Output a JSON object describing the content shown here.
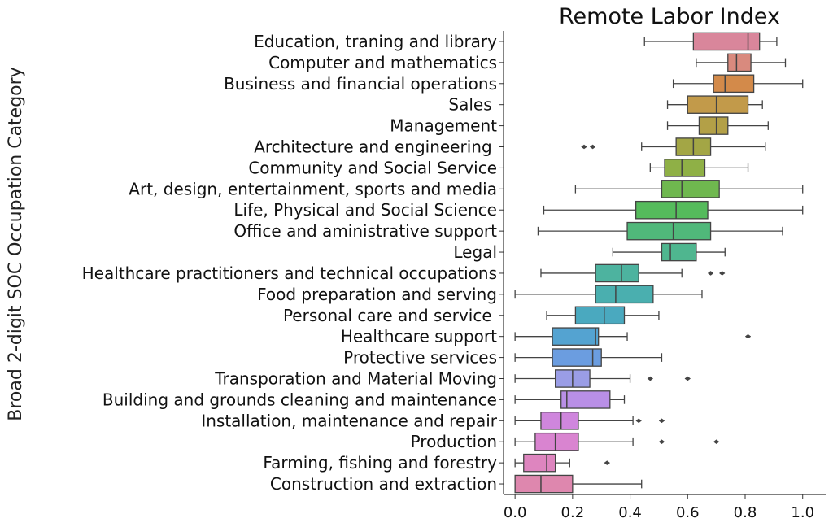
{
  "chart_data": {
    "type": "box",
    "orientation": "horizontal",
    "title": "Remote Labor Index",
    "xlabel": "",
    "ylabel": "Broad 2-digit SOC Occupation Category",
    "xlim": [
      -0.04,
      1.08
    ],
    "xticks": [
      "0.0",
      "0.2",
      "0.4",
      "0.6",
      "0.8",
      "1.0"
    ],
    "xtick_values": [
      0.0,
      0.2,
      0.4,
      0.6,
      0.8,
      1.0
    ],
    "grid": false,
    "categories": [
      {
        "label": "Education, traning and library",
        "whislo": 0.45,
        "q1": 0.62,
        "med": 0.81,
        "q3": 0.85,
        "whishi": 0.91,
        "fliers": [],
        "color": "#d9869b"
      },
      {
        "label": "Computer and mathematics",
        "whislo": 0.63,
        "q1": 0.74,
        "med": 0.77,
        "q3": 0.82,
        "whishi": 0.94,
        "fliers": [],
        "color": "#d98a7e"
      },
      {
        "label": "Business and financial operations",
        "whislo": 0.55,
        "q1": 0.69,
        "med": 0.73,
        "q3": 0.83,
        "whishi": 1.0,
        "fliers": [],
        "color": "#d38a4a"
      },
      {
        "label": "Sales ",
        "whislo": 0.53,
        "q1": 0.6,
        "med": 0.7,
        "q3": 0.81,
        "whishi": 0.86,
        "fliers": [],
        "color": "#c29a4a"
      },
      {
        "label": "Management",
        "whislo": 0.53,
        "q1": 0.64,
        "med": 0.7,
        "q3": 0.74,
        "whishi": 0.88,
        "fliers": [],
        "color": "#b3a047"
      },
      {
        "label": "Architecture and engineering ",
        "whislo": 0.44,
        "q1": 0.56,
        "med": 0.62,
        "q3": 0.68,
        "whishi": 0.87,
        "fliers": [
          0.24,
          0.27
        ],
        "color": "#a3a645"
      },
      {
        "label": "Community and Social Service",
        "whislo": 0.47,
        "q1": 0.52,
        "med": 0.58,
        "q3": 0.66,
        "whishi": 0.81,
        "fliers": [],
        "color": "#8fb046"
      },
      {
        "label": "Art, design, entertainment, sports and media",
        "whislo": 0.21,
        "q1": 0.51,
        "med": 0.58,
        "q3": 0.71,
        "whishi": 1.0,
        "fliers": [],
        "color": "#6fb84f"
      },
      {
        "label": "Life, Physical and Social Science",
        "whislo": 0.1,
        "q1": 0.42,
        "med": 0.56,
        "q3": 0.67,
        "whishi": 1.0,
        "fliers": [],
        "color": "#55bb5c"
      },
      {
        "label": "Office and aministrative support",
        "whislo": 0.08,
        "q1": 0.39,
        "med": 0.55,
        "q3": 0.68,
        "whishi": 0.93,
        "fliers": [],
        "color": "#50b87a"
      },
      {
        "label": "Legal",
        "whislo": 0.34,
        "q1": 0.51,
        "med": 0.54,
        "q3": 0.63,
        "whishi": 0.73,
        "fliers": [],
        "color": "#4fb68f"
      },
      {
        "label": "Healthcare practitioners and technical occupations",
        "whislo": 0.09,
        "q1": 0.28,
        "med": 0.37,
        "q3": 0.43,
        "whishi": 0.58,
        "fliers": [
          0.68,
          0.72
        ],
        "color": "#4db39f"
      },
      {
        "label": "Food preparation and serving",
        "whislo": 0.0,
        "q1": 0.28,
        "med": 0.35,
        "q3": 0.48,
        "whishi": 0.65,
        "fliers": [],
        "color": "#4aafaf"
      },
      {
        "label": "Personal care and service ",
        "whislo": 0.11,
        "q1": 0.21,
        "med": 0.31,
        "q3": 0.38,
        "whishi": 0.5,
        "fliers": [],
        "color": "#4aa9bf"
      },
      {
        "label": "Healthcare support",
        "whislo": 0.0,
        "q1": 0.13,
        "med": 0.28,
        "q3": 0.29,
        "whishi": 0.39,
        "fliers": [
          0.81
        ],
        "color": "#54a3d1"
      },
      {
        "label": "Protective services",
        "whislo": 0.0,
        "q1": 0.13,
        "med": 0.27,
        "q3": 0.3,
        "whishi": 0.51,
        "fliers": [],
        "color": "#6b9de0"
      },
      {
        "label": "Transporation and Material Moving",
        "whislo": 0.0,
        "q1": 0.14,
        "med": 0.2,
        "q3": 0.26,
        "whishi": 0.4,
        "fliers": [
          0.47,
          0.6
        ],
        "color": "#9a9de6"
      },
      {
        "label": "Building and grounds cleaning and maintenance",
        "whislo": 0.0,
        "q1": 0.16,
        "med": 0.18,
        "q3": 0.33,
        "whishi": 0.38,
        "fliers": [],
        "color": "#b98fe6"
      },
      {
        "label": "Installation, maintenance and repair",
        "whislo": 0.0,
        "q1": 0.09,
        "med": 0.16,
        "q3": 0.22,
        "whishi": 0.41,
        "fliers": [
          0.43,
          0.51
        ],
        "color": "#cf86dd"
      },
      {
        "label": "Production",
        "whislo": 0.0,
        "q1": 0.07,
        "med": 0.14,
        "q3": 0.22,
        "whishi": 0.41,
        "fliers": [
          0.51,
          0.7
        ],
        "color": "#d984d0"
      },
      {
        "label": "Farming, fishing and forestry",
        "whislo": 0.0,
        "q1": 0.03,
        "med": 0.11,
        "q3": 0.14,
        "whishi": 0.19,
        "fliers": [
          0.32
        ],
        "color": "#de85bf"
      },
      {
        "label": "Construction and extraction",
        "whislo": 0.0,
        "q1": 0.0,
        "med": 0.09,
        "q3": 0.2,
        "whishi": 0.44,
        "fliers": [],
        "color": "#de87ae"
      }
    ]
  }
}
